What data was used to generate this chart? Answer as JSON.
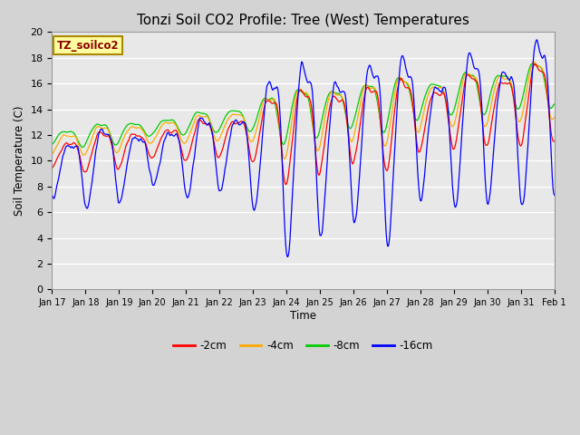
{
  "title": "Tonzi Soil CO2 Profile: Tree (West) Temperatures",
  "ylabel": "Soil Temperature (C)",
  "xlabel": "Time",
  "annotation": "TZ_soilco2",
  "ylim": [
    0,
    20
  ],
  "figsize": [
    6.4,
    4.8
  ],
  "dpi": 100,
  "background_color": "#d3d3d3",
  "plot_bg_color": "#e8e8e8",
  "series_colors": [
    "#ff0000",
    "#ffaa00",
    "#00cc00",
    "#0000ff"
  ],
  "series_labels": [
    "-2cm",
    "-4cm",
    "-8cm",
    "-16cm"
  ],
  "x_tick_labels": [
    "Jan 17",
    "Jan 18",
    "Jan 19",
    "Jan 20",
    "Jan 21",
    "Jan 22",
    "Jan 23",
    "Jan 24",
    "Jan 25",
    "Jan 26",
    "Jan 27",
    "Jan 28",
    "Jan 29",
    "Jan 30",
    "Jan 31",
    "Feb 1"
  ],
  "yticks": [
    0,
    2,
    4,
    6,
    8,
    10,
    12,
    14,
    16,
    18,
    20
  ],
  "num_points": 721
}
